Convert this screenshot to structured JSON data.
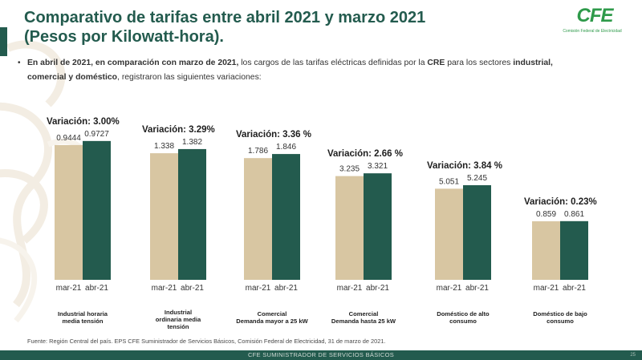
{
  "title_line1": "Comparativo de tarifas entre abril 2021 y marzo 2021",
  "title_line2": "(Pesos por Kilowatt-hora).",
  "logo": {
    "word": "CFE",
    "subtitle": "Comisión Federal de Electricidad"
  },
  "intro": {
    "bullet": "•",
    "p1": "En abril de 2021, en comparación con marzo de 2021,",
    "p2": " los cargos de las tarifas eléctricas definidas por la ",
    "p3": "CRE",
    "p4": " para los sectores ",
    "p5": "industrial,",
    "p6": "comercial y doméstico",
    "p7": ", registraron las siguientes variaciones:"
  },
  "colors": {
    "mar": "#d8c6a2",
    "abr": "#235b4e",
    "accent": "#235b4e",
    "text_green": "#235b4e"
  },
  "chart_data": {
    "type": "bar",
    "series": [
      {
        "name": "mar-21"
      },
      {
        "name": "abr-21"
      }
    ],
    "groups": [
      {
        "label": "Industrial horaria media tensión",
        "label_lines": [
          "Industrial horaria",
          "media tensión"
        ],
        "variation_label": "Variación: 3.00%",
        "mar": 0.9444,
        "abr": 0.9727,
        "mar_label": "0.9444",
        "abr_label": "0.9727",
        "x_labels": [
          "mar-21",
          "abr-21"
        ]
      },
      {
        "label": "Industrial ordinaria media tensión",
        "label_lines": [
          "Industrial",
          "ordinaria media",
          "tensión"
        ],
        "variation_label": "Variación:  3.29%",
        "mar": 1.338,
        "abr": 1.382,
        "mar_label": "1.338",
        "abr_label": "1.382",
        "x_labels": [
          "mar-21",
          "abr-21"
        ]
      },
      {
        "label": "Comercial Demanda mayor a 25 kW",
        "label_lines": [
          "Comercial",
          "Demanda mayor a 25 kW"
        ],
        "variation_label": "Variación: 3.36 %",
        "mar": 1.786,
        "abr": 1.846,
        "mar_label": "1.786",
        "abr_label": "1.846",
        "x_labels": [
          "mar-21",
          "abr-21"
        ]
      },
      {
        "label": "Comercial Demanda hasta 25 kW",
        "label_lines": [
          "Comercial",
          "Demanda hasta  25 kW"
        ],
        "variation_label": "Variación:   2.66 %",
        "mar": 3.235,
        "abr": 3.321,
        "mar_label": "3.235",
        "abr_label": "3.321",
        "x_labels": [
          "mar-21",
          "abr-21"
        ]
      },
      {
        "label": "Doméstico de alto consumo",
        "label_lines": [
          "Doméstico de alto",
          "consumo"
        ],
        "variation_label": "Variación:  3.84 %",
        "mar": 5.051,
        "abr": 5.245,
        "mar_label": "5.051",
        "abr_label": "5.245",
        "x_labels": [
          "mar-21",
          "abr-21"
        ]
      },
      {
        "label": "Doméstico de bajo consumo",
        "label_lines": [
          "Doméstico de bajo",
          "consumo"
        ],
        "variation_label": "Variación: 0.23%",
        "mar": 0.859,
        "abr": 0.861,
        "mar_label": "0.859",
        "abr_label": "0.861",
        "x_labels": [
          "mar-21",
          "abr-21"
        ]
      }
    ]
  },
  "footer": {
    "source": "Fuente: Región Central del país. EPS CFE Suministrador de Servicios Básicos, Comisión Federal de Electricidad, 31 de marzo de 2021.",
    "bar_label": "CFE SUMINISTRADOR DE SERVICIOS BÁSICOS",
    "page": "25"
  }
}
